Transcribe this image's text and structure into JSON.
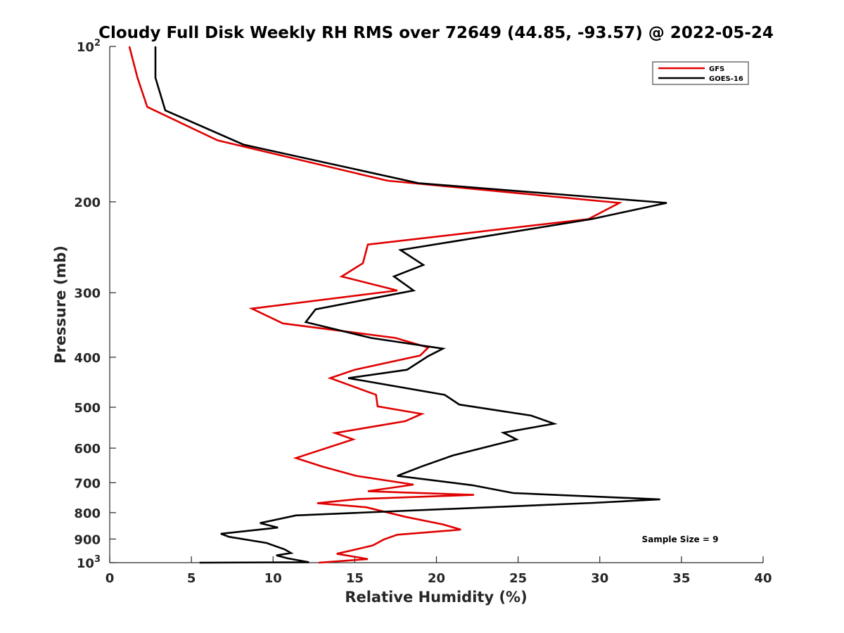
{
  "chart_data": {
    "type": "line",
    "title": "Cloudy Full Disk Weekly RH RMS over 72649 (44.85, -93.57) @ 2022-05-24",
    "xlabel": "Relative Humidity (%)",
    "ylabel": "Pressure (mb)",
    "xlim": [
      0,
      40
    ],
    "ylim": [
      100,
      1000
    ],
    "y_scale": "log",
    "y_reversed": true,
    "grid": false,
    "legend_position": "top-right",
    "x_ticks": [
      {
        "value": 0,
        "label": "0"
      },
      {
        "value": 5,
        "label": "5"
      },
      {
        "value": 10,
        "label": "10"
      },
      {
        "value": 15,
        "label": "15"
      },
      {
        "value": 20,
        "label": "20"
      },
      {
        "value": 25,
        "label": "25"
      },
      {
        "value": 30,
        "label": "30"
      },
      {
        "value": 35,
        "label": "35"
      },
      {
        "value": 40,
        "label": "40"
      }
    ],
    "y_ticks": [
      {
        "value": 100,
        "label": "10",
        "sup": "2"
      },
      {
        "value": 200,
        "label": "200"
      },
      {
        "value": 300,
        "label": "300"
      },
      {
        "value": 400,
        "label": "400"
      },
      {
        "value": 500,
        "label": "500"
      },
      {
        "value": 600,
        "label": "600"
      },
      {
        "value": 700,
        "label": "700"
      },
      {
        "value": 800,
        "label": "800"
      },
      {
        "value": 900,
        "label": "900"
      },
      {
        "value": 1000,
        "label": "10",
        "sup": "3"
      }
    ],
    "series": [
      {
        "name": "GFS",
        "color": "#e00000",
        "points": [
          [
            1.2,
            100
          ],
          [
            1.7,
            115
          ],
          [
            2.3,
            131
          ],
          [
            6.6,
            152
          ],
          [
            17.0,
            182
          ],
          [
            31.2,
            201
          ],
          [
            29.3,
            216
          ],
          [
            15.8,
            242
          ],
          [
            15.5,
            263
          ],
          [
            14.2,
            279
          ],
          [
            17.6,
            297
          ],
          [
            8.7,
            322
          ],
          [
            10.6,
            344
          ],
          [
            17.5,
            367
          ],
          [
            19.5,
            383
          ],
          [
            19.0,
            397
          ],
          [
            15.0,
            423
          ],
          [
            13.5,
            439
          ],
          [
            16.3,
            473
          ],
          [
            16.4,
            498
          ],
          [
            19.1,
            515
          ],
          [
            18.1,
            532
          ],
          [
            13.8,
            561
          ],
          [
            14.9,
            577
          ],
          [
            11.4,
            627
          ],
          [
            13.0,
            651
          ],
          [
            15.1,
            679
          ],
          [
            18.6,
            706
          ],
          [
            15.8,
            727
          ],
          [
            22.3,
            739
          ],
          [
            15.2,
            753
          ],
          [
            12.7,
            767
          ],
          [
            15.7,
            781
          ],
          [
            18.1,
            815
          ],
          [
            20.4,
            843
          ],
          [
            21.5,
            863
          ],
          [
            17.6,
            883
          ],
          [
            16.8,
            901
          ],
          [
            16.1,
            926
          ],
          [
            14.8,
            947
          ],
          [
            13.9,
            961
          ],
          [
            15.8,
            984
          ],
          [
            12.8,
            1000
          ]
        ]
      },
      {
        "name": "GOES-16",
        "color": "#000000",
        "points": [
          [
            2.8,
            100
          ],
          [
            2.8,
            115
          ],
          [
            3.4,
            133
          ],
          [
            8.2,
            155
          ],
          [
            18.9,
            184
          ],
          [
            34.1,
            201
          ],
          [
            29.5,
            216
          ],
          [
            17.8,
            248
          ],
          [
            19.2,
            265
          ],
          [
            17.4,
            279
          ],
          [
            18.6,
            297
          ],
          [
            12.6,
            323
          ],
          [
            12.0,
            342
          ],
          [
            16.0,
            367
          ],
          [
            20.4,
            385
          ],
          [
            19.5,
            398
          ],
          [
            18.2,
            423
          ],
          [
            14.6,
            439
          ],
          [
            20.5,
            473
          ],
          [
            21.4,
            494
          ],
          [
            25.8,
            519
          ],
          [
            27.2,
            538
          ],
          [
            24.1,
            560
          ],
          [
            24.9,
            577
          ],
          [
            21.0,
            620
          ],
          [
            19.1,
            651
          ],
          [
            17.6,
            679
          ],
          [
            22.2,
            708
          ],
          [
            24.7,
            733
          ],
          [
            33.7,
            754
          ],
          [
            29.6,
            766
          ],
          [
            11.4,
            810
          ],
          [
            9.2,
            838
          ],
          [
            10.3,
            855
          ],
          [
            6.8,
            879
          ],
          [
            7.3,
            891
          ],
          [
            9.6,
            916
          ],
          [
            10.7,
            942
          ],
          [
            11.1,
            958
          ],
          [
            10.2,
            968
          ],
          [
            10.9,
            981
          ],
          [
            12.2,
            998
          ],
          [
            5.5,
            1000
          ]
        ]
      }
    ],
    "annotations": [
      {
        "text": "Sample Size = 9"
      }
    ]
  }
}
